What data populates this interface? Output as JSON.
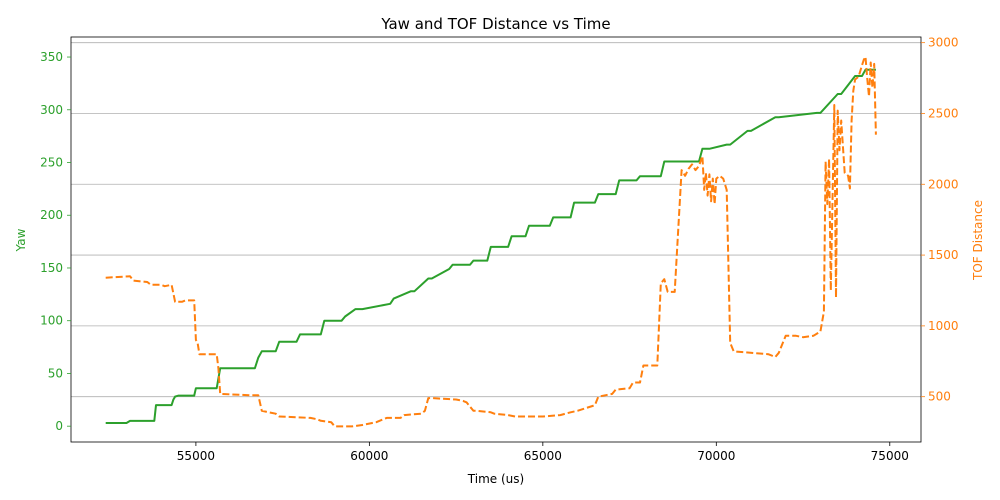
{
  "chart_data": {
    "type": "line",
    "title": "Yaw and TOF Distance vs Time",
    "xlabel": "Time (us)",
    "ylabel_left": "Yaw",
    "ylabel_right": "TOF Distance",
    "xlim": [
      51400,
      75900
    ],
    "ylim_left": [
      -15,
      369
    ],
    "ylim_right": [
      180,
      3040
    ],
    "x_ticks": [
      55000,
      60000,
      65000,
      70000,
      75000
    ],
    "y_ticks_left": [
      0,
      50,
      100,
      150,
      200,
      250,
      300,
      350
    ],
    "y_ticks_right": [
      500,
      1000,
      1500,
      2000,
      2500,
      3000
    ],
    "grid": "horizontal lines at right-axis ticks",
    "colors": {
      "yaw": "#2ca02c",
      "tof": "#ff7f0e"
    },
    "series": [
      {
        "axis": "left",
        "style": "solid",
        "x": [
          52400,
          53000,
          53100,
          53800,
          53850,
          54300,
          54350,
          54400,
          54500,
          54950,
          55000,
          55600,
          55700,
          56700,
          56800,
          56900,
          57300,
          57400,
          57900,
          58000,
          58600,
          58700,
          59200,
          59300,
          59600,
          59800,
          60600,
          60700,
          61200,
          61300,
          61700,
          61800,
          62300,
          62400,
          62900,
          63000,
          63400,
          63500,
          64000,
          64100,
          64500,
          64600,
          65200,
          65300,
          65800,
          65900,
          66500,
          66600,
          67100,
          67200,
          67700,
          67800,
          68400,
          68500,
          69500,
          69600,
          69800,
          70300,
          70400,
          70900,
          71000,
          71700,
          71800,
          72900,
          73000,
          73500,
          73600,
          74000,
          74200,
          74300,
          74600
        ],
        "y": [
          3,
          3,
          5,
          5,
          20,
          20,
          25,
          28,
          29,
          29,
          36,
          36,
          55,
          55,
          65,
          71,
          71,
          80,
          80,
          87,
          87,
          100,
          100,
          104,
          111,
          111,
          116,
          121,
          128,
          128,
          140,
          140,
          149,
          153,
          153,
          157,
          157,
          170,
          170,
          180,
          180,
          190,
          190,
          198,
          198,
          212,
          212,
          220,
          220,
          233,
          233,
          237,
          237,
          251,
          251,
          263,
          263,
          267,
          267,
          280,
          280,
          293,
          293,
          297,
          297,
          315,
          315,
          332,
          332,
          338,
          338
        ]
      },
      {
        "axis": "right",
        "style": "dashed",
        "x": [
          52400,
          53100,
          53200,
          53600,
          53700,
          54000,
          54100,
          54300,
          54400,
          54600,
          54700,
          54950,
          55000,
          55050,
          55100,
          55600,
          55650,
          55700,
          56600,
          56800,
          56900,
          57300,
          57400,
          58300,
          58500,
          58600,
          58900,
          59000,
          59500,
          59800,
          60200,
          60400,
          60500,
          60900,
          61000,
          61500,
          61600,
          61700,
          61800,
          62500,
          62700,
          62800,
          63000,
          63100,
          63500,
          63600,
          64000,
          64200,
          65000,
          65500,
          65800,
          66000,
          66500,
          66600,
          67000,
          67100,
          67500,
          67600,
          67800,
          67900,
          68300,
          68400,
          68500,
          68600,
          68800,
          69000,
          69100,
          69200,
          69300,
          69400,
          69500,
          69600,
          69650,
          69700,
          69750,
          69800,
          69850,
          69900,
          69950,
          70000,
          70100,
          70200,
          70300,
          70400,
          70500,
          71500,
          71700,
          71800,
          72000,
          72300,
          72500,
          72800,
          73000,
          73100,
          73150,
          73200,
          73250,
          73300,
          73400,
          73450,
          73500,
          73550,
          73600,
          73700,
          73800,
          73850,
          73900,
          73950,
          74000,
          74100,
          74200,
          74250,
          74300,
          74350,
          74400,
          74450,
          74500,
          74550,
          74600
        ],
        "y": [
          1340,
          1350,
          1320,
          1310,
          1290,
          1290,
          1280,
          1290,
          1170,
          1170,
          1180,
          1180,
          900,
          880,
          800,
          800,
          700,
          520,
          510,
          510,
          400,
          380,
          360,
          350,
          340,
          330,
          320,
          290,
          290,
          300,
          320,
          340,
          350,
          350,
          370,
          380,
          400,
          490,
          490,
          480,
          470,
          460,
          400,
          400,
          390,
          380,
          370,
          360,
          360,
          370,
          390,
          400,
          440,
          500,
          520,
          550,
          560,
          600,
          600,
          720,
          720,
          1300,
          1330,
          1240,
          1240,
          2100,
          2060,
          2110,
          2140,
          2100,
          2130,
          2200,
          1960,
          2080,
          1920,
          2070,
          1880,
          2040,
          1860,
          2040,
          2060,
          2040,
          1960,
          880,
          820,
          800,
          780,
          810,
          930,
          930,
          920,
          930,
          960,
          1100,
          2160,
          1860,
          2180,
          1250,
          2560,
          1200,
          2520,
          2240,
          2450,
          2080,
          2060,
          1970,
          2450,
          2660,
          2740,
          2760,
          2840,
          2880,
          2900,
          2750,
          2620,
          2860,
          2680,
          2850,
          2350
        ]
      }
    ]
  }
}
